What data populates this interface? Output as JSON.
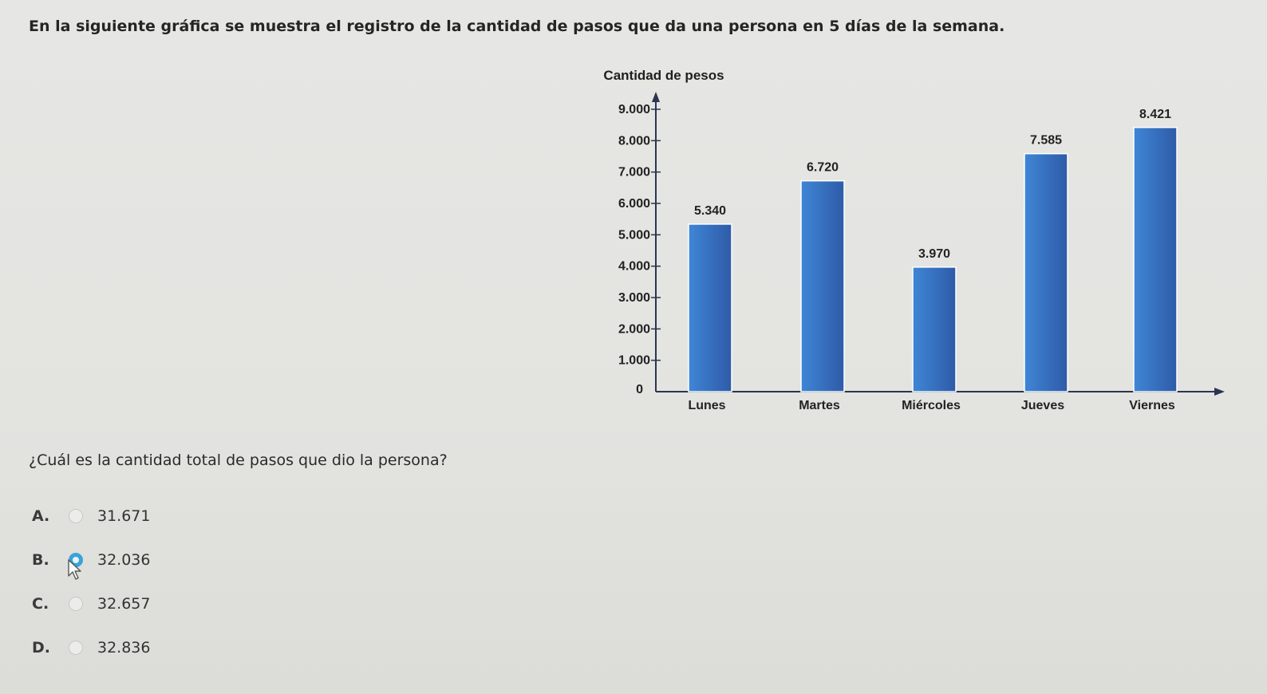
{
  "intro_text": "En la siguiente gráfica se muestra el registro de la cantidad de pasos que da una persona en 5 días de la semana.",
  "question_text": "¿Cuál es la cantidad total de pasos que dio la persona?",
  "options": [
    {
      "letter": "A.",
      "value": "31.671",
      "selected": false
    },
    {
      "letter": "B.",
      "value": "32.036",
      "selected": true
    },
    {
      "letter": "C.",
      "value": "32.657",
      "selected": false
    },
    {
      "letter": "D.",
      "value": "32.836",
      "selected": false
    }
  ],
  "colors": {
    "bar_light": "#3f86d6",
    "bar_dark": "#2e5ba8",
    "axis": "#2a3550",
    "radio_selected": "#3aa3d8"
  },
  "chart_data": {
    "type": "bar",
    "title": "Cantidad de pesos",
    "categories": [
      "Lunes",
      "Martes",
      "Miércoles",
      "Jueves",
      "Viernes"
    ],
    "values": [
      5340,
      6720,
      3970,
      7585,
      8421
    ],
    "value_labels": [
      "5.340",
      "6.720",
      "3.970",
      "7.585",
      "8.421"
    ],
    "y_ticks": [
      0,
      1000,
      2000,
      3000,
      4000,
      5000,
      6000,
      7000,
      8000,
      9000
    ],
    "y_tick_labels": [
      "0",
      "1.000",
      "2.000",
      "3.000",
      "4.000",
      "5.000",
      "6.000",
      "7.000",
      "8.000",
      "9.000"
    ],
    "ylim": [
      0,
      9000
    ],
    "grid": false,
    "legend": "none"
  }
}
